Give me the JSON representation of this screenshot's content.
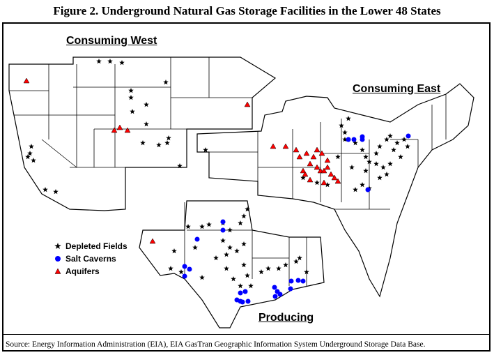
{
  "title": "Figure 2.  Underground Natural Gas Storage Facilities in the Lower 48 States",
  "regions": {
    "west": "Consuming West",
    "east": "Consuming East",
    "producing": "Producing"
  },
  "legend": [
    {
      "label": "Depleted Fields",
      "symbol": "star",
      "color": "#000000"
    },
    {
      "label": "Salt Caverns",
      "symbol": "circle",
      "color": "#0000ff"
    },
    {
      "label": "Aquifers",
      "symbol": "triangle",
      "color": "#ff0000"
    }
  ],
  "source": "Source:  Energy Information Administration (EIA), EIA GasTran Geographic Information System Underground Storage Data Base."
}
